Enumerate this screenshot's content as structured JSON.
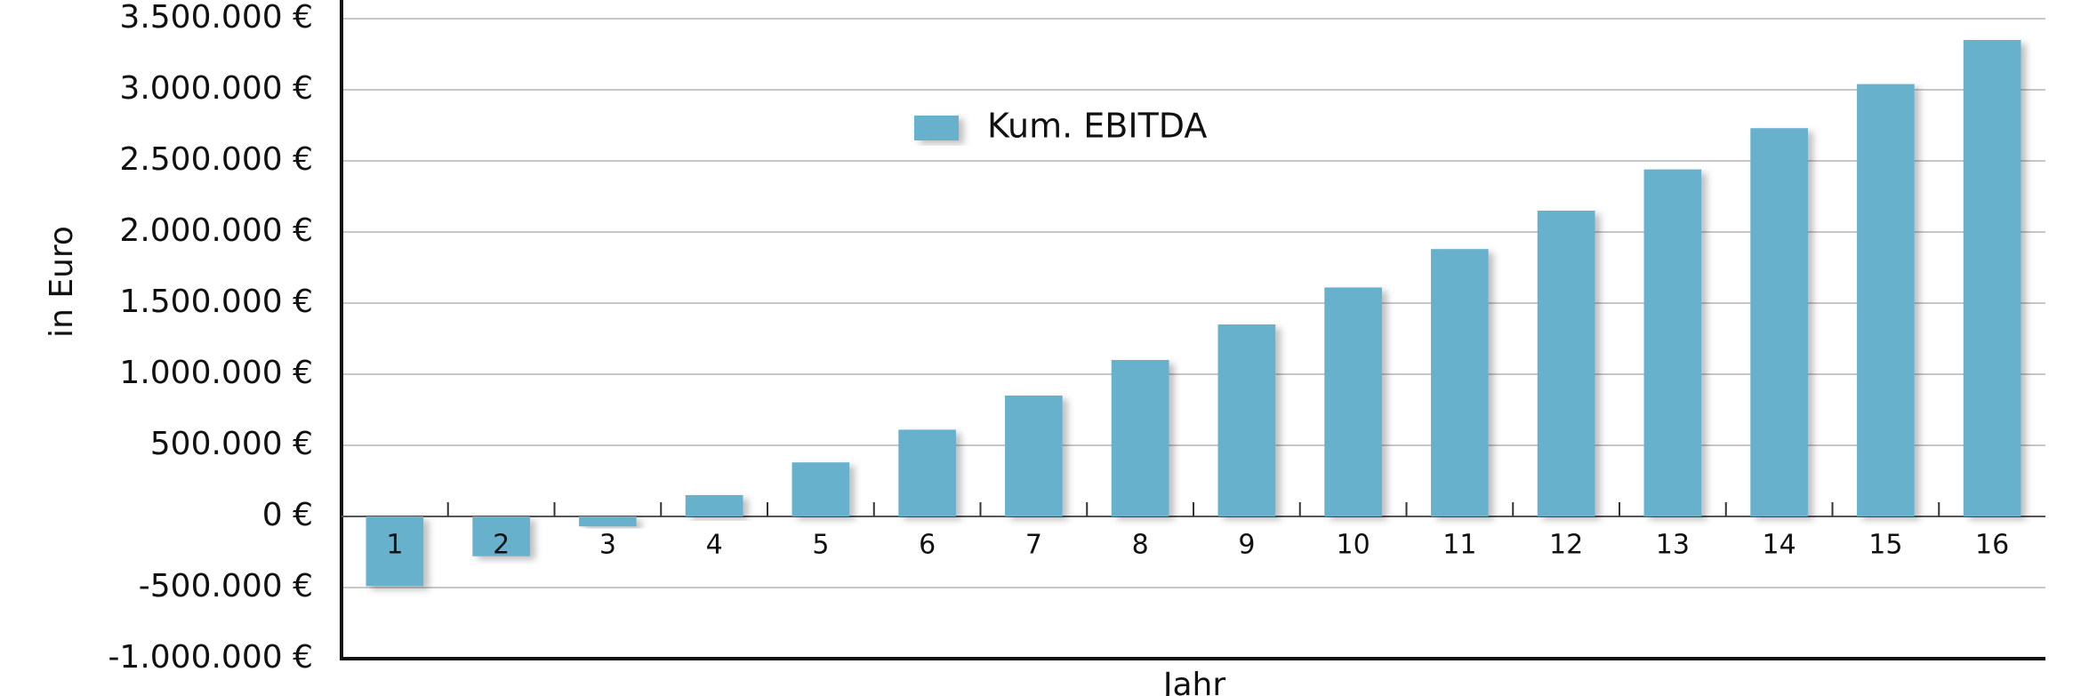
{
  "chart_data": {
    "type": "bar",
    "x_label": "Jahr",
    "y_label": "in Euro",
    "categories": [
      "1",
      "2",
      "3",
      "4",
      "5",
      "6",
      "7",
      "8",
      "9",
      "10",
      "11",
      "12",
      "13",
      "14",
      "15",
      "16"
    ],
    "series": [
      {
        "name": "Kum. EBITDA",
        "color": "#67b1cc",
        "values": [
          -490000,
          -280000,
          -70000,
          150000,
          380000,
          610000,
          850000,
          1100000,
          1350000,
          1610000,
          1880000,
          2150000,
          2440000,
          2730000,
          3040000,
          3350000
        ]
      }
    ],
    "ylim": [
      -1000000,
      3500000
    ],
    "yticks": [
      {
        "value": -1000000,
        "label": "-1.000.000 €"
      },
      {
        "value": -500000,
        "label": "-500.000 €"
      },
      {
        "value": 0,
        "label": "0 €"
      },
      {
        "value": 500000,
        "label": "500.000 €"
      },
      {
        "value": 1000000,
        "label": "1.000.000 €"
      },
      {
        "value": 1500000,
        "label": "1.500.000 €"
      },
      {
        "value": 2000000,
        "label": "2.000.000 €"
      },
      {
        "value": 2500000,
        "label": "2.500.000 €"
      },
      {
        "value": 3000000,
        "label": "3.000.000 €"
      },
      {
        "value": 3500000,
        "label": "3.500.000 €"
      }
    ],
    "grid": true,
    "legend": "top"
  }
}
